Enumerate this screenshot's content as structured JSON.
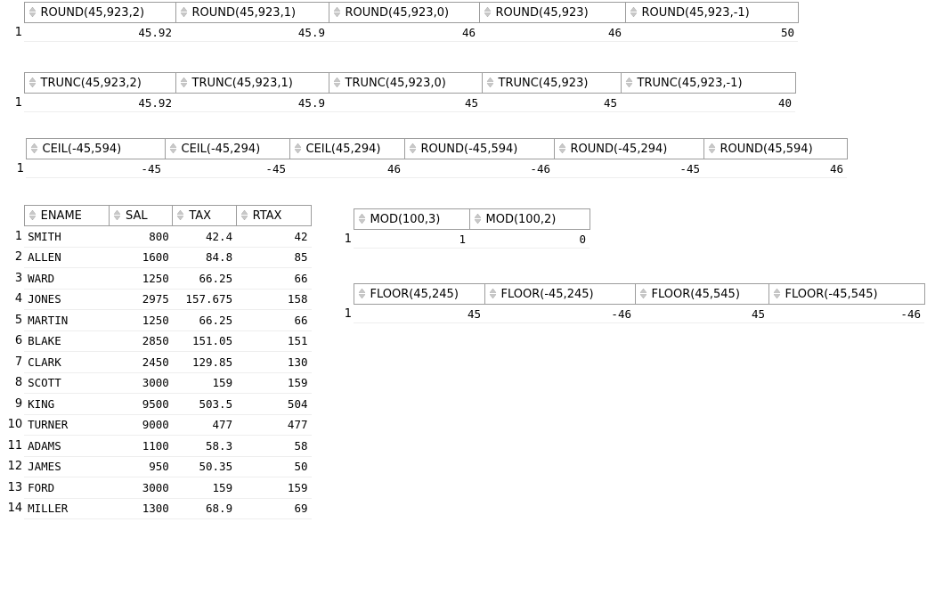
{
  "icon": "sort-arrows-icon",
  "round_grid": {
    "columns": [
      "ROUND(45,923,2)",
      "ROUND(45,923,1)",
      "ROUND(45,923,0)",
      "ROUND(45,923)",
      "ROUND(45,923,-1)"
    ],
    "rows": [
      {
        "n": "1",
        "c": [
          "45.92",
          "45.9",
          "46",
          "46",
          "50"
        ]
      }
    ]
  },
  "trunc_grid": {
    "columns": [
      "TRUNC(45,923,2)",
      "TRUNC(45,923,1)",
      "TRUNC(45,923,0)",
      "TRUNC(45,923)",
      "TRUNC(45,923,-1)"
    ],
    "rows": [
      {
        "n": "1",
        "c": [
          "45.92",
          "45.9",
          "45",
          "45",
          "40"
        ]
      }
    ]
  },
  "ceil_grid": {
    "columns": [
      "CEIL(-45,594)",
      "CEIL(-45,294)",
      "CEIL(45,294)",
      "ROUND(-45,594)",
      "ROUND(-45,294)",
      "ROUND(45,594)"
    ],
    "rows": [
      {
        "n": "1",
        "c": [
          "-45",
          "-45",
          "46",
          "-46",
          "-45",
          "46"
        ]
      }
    ]
  },
  "emp_grid": {
    "columns": [
      "ENAME",
      "SAL",
      "TAX",
      "RTAX"
    ],
    "rows": [
      {
        "n": "1",
        "c": [
          "SMITH",
          "800",
          "42.4",
          "42"
        ]
      },
      {
        "n": "2",
        "c": [
          "ALLEN",
          "1600",
          "84.8",
          "85"
        ]
      },
      {
        "n": "3",
        "c": [
          "WARD",
          "1250",
          "66.25",
          "66"
        ]
      },
      {
        "n": "4",
        "c": [
          "JONES",
          "2975",
          "157.675",
          "158"
        ]
      },
      {
        "n": "5",
        "c": [
          "MARTIN",
          "1250",
          "66.25",
          "66"
        ]
      },
      {
        "n": "6",
        "c": [
          "BLAKE",
          "2850",
          "151.05",
          "151"
        ]
      },
      {
        "n": "7",
        "c": [
          "CLARK",
          "2450",
          "129.85",
          "130"
        ]
      },
      {
        "n": "8",
        "c": [
          "SCOTT",
          "3000",
          "159",
          "159"
        ]
      },
      {
        "n": "9",
        "c": [
          "KING",
          "9500",
          "503.5",
          "504"
        ]
      },
      {
        "n": "10",
        "c": [
          "TURNER",
          "9000",
          "477",
          "477"
        ]
      },
      {
        "n": "11",
        "c": [
          "ADAMS",
          "1100",
          "58.3",
          "58"
        ]
      },
      {
        "n": "12",
        "c": [
          "JAMES",
          "950",
          "50.35",
          "50"
        ]
      },
      {
        "n": "13",
        "c": [
          "FORD",
          "3000",
          "159",
          "159"
        ]
      },
      {
        "n": "14",
        "c": [
          "MILLER",
          "1300",
          "68.9",
          "69"
        ]
      }
    ]
  },
  "mod_grid": {
    "columns": [
      "MOD(100,3)",
      "MOD(100,2)"
    ],
    "rows": [
      {
        "n": "1",
        "c": [
          "1",
          "0"
        ]
      }
    ]
  },
  "floor_grid": {
    "columns": [
      "FLOOR(45,245)",
      "FLOOR(-45,245)",
      "FLOOR(45,545)",
      "FLOOR(-45,545)"
    ],
    "rows": [
      {
        "n": "1",
        "c": [
          "45",
          "-46",
          "45",
          "-46"
        ]
      }
    ]
  }
}
